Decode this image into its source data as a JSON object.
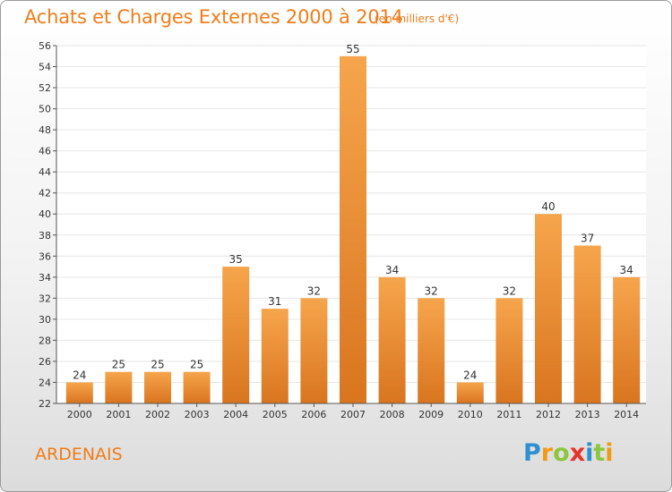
{
  "header": {
    "title": "Achats et Charges Externes 2000 à 2014",
    "subtitle": "(en milliers d'€)"
  },
  "footer": {
    "place": "ARDENAIS",
    "logo_letters": [
      "P",
      "r",
      "o",
      "x",
      "i",
      "t",
      "i"
    ]
  },
  "colors": {
    "accent": "#ef7d1a",
    "bar_top": "#f6a54c",
    "bar_bottom": "#d9751f",
    "grid": "#e6e6e6"
  },
  "chart_data": {
    "type": "bar",
    "title": "Achats et Charges Externes 2000 à 2014",
    "subtitle": "(en milliers d'€)",
    "categories": [
      "2000",
      "2001",
      "2002",
      "2003",
      "2004",
      "2005",
      "2006",
      "2007",
      "2008",
      "2009",
      "2010",
      "2011",
      "2012",
      "2013",
      "2014"
    ],
    "values": [
      24,
      25,
      25,
      25,
      35,
      31,
      32,
      55,
      34,
      32,
      24,
      32,
      40,
      37,
      34
    ],
    "ylim": [
      22,
      56
    ],
    "yticks": [
      22,
      24,
      26,
      28,
      30,
      32,
      34,
      36,
      38,
      40,
      42,
      44,
      46,
      48,
      50,
      52,
      54,
      56
    ],
    "grid": true,
    "xlabel": "",
    "ylabel": ""
  }
}
